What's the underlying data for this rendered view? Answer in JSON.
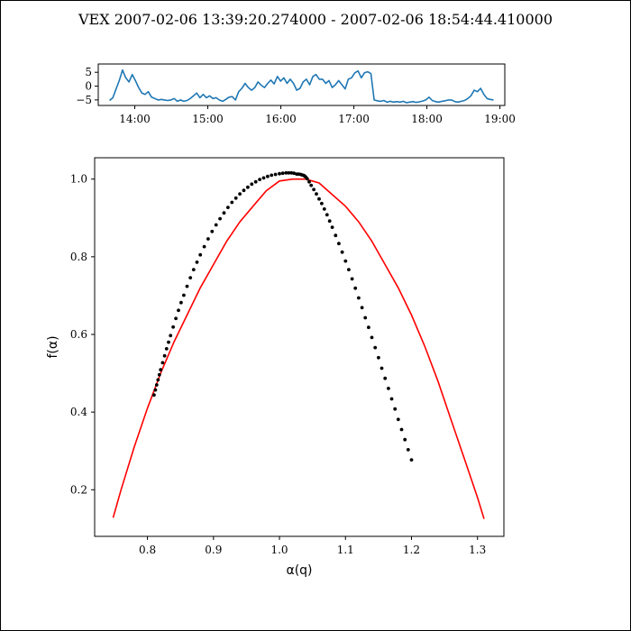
{
  "title": "VEX  2007-02-06 13:39:20.274000 - 2007-02-06 18:54:44.410000",
  "colors": {
    "timeseries": "#1f77b4",
    "fit_curve": "#ff0000",
    "spectrum_points": "#000000"
  },
  "chart_data": [
    {
      "type": "line",
      "name": "timeseries",
      "xticks": [
        "14:00",
        "15:00",
        "16:00",
        "17:00",
        "18:00",
        "19:00"
      ],
      "xlim": [
        "13:30",
        "19:04"
      ],
      "yticks": [
        5,
        0,
        -5
      ],
      "ylim": [
        -7,
        8
      ],
      "x_start": "13:39:20",
      "x_end": "18:54:44",
      "y": [
        -5.2,
        -4.2,
        -1.0,
        2.0,
        5.8,
        3.0,
        1.5,
        4.2,
        2.0,
        -0.5,
        -2.5,
        -3.0,
        -2.0,
        -4.0,
        -4.5,
        -5.0,
        -4.8,
        -5.0,
        -5.2,
        -5.0,
        -4.5,
        -5.5,
        -5.0,
        -5.5,
        -5.2,
        -4.5,
        -3.5,
        -2.5,
        -4.2,
        -3.0,
        -4.2,
        -3.5,
        -4.5,
        -4.2,
        -5.0,
        -5.5,
        -4.8,
        -4.0,
        -3.8,
        -5.0,
        -2.0,
        -0.8,
        1.0,
        -0.5,
        -1.5,
        -0.5,
        1.5,
        0.3,
        -0.5,
        1.0,
        2.2,
        0.8,
        3.5,
        1.8,
        3.0,
        1.0,
        2.5,
        1.0,
        -1.5,
        -0.8,
        1.5,
        2.5,
        0.5,
        3.5,
        4.2,
        2.5,
        2.5,
        1.0,
        2.0,
        -0.5,
        0.5,
        2.0,
        0.5,
        -1.0,
        2.5,
        3.0,
        4.8,
        5.5,
        3.0,
        4.8,
        5.2,
        4.5,
        -5.0,
        -5.3,
        -5.5,
        -5.2,
        -5.8,
        -5.5,
        -5.8,
        -5.6,
        -5.8,
        -5.5,
        -6.0,
        -5.8,
        -5.6,
        -5.9,
        -5.7,
        -5.4,
        -5.0,
        -4.0,
        -5.2,
        -5.6,
        -5.8,
        -5.5,
        -5.3,
        -5.0,
        -5.0,
        -5.6,
        -5.8,
        -5.5,
        -5.2,
        -4.5,
        -3.5,
        -1.5,
        -2.0,
        -0.8,
        -3.0,
        -4.5,
        -4.8,
        -5.0
      ]
    },
    {
      "type": "scatter",
      "name": "spectrum",
      "xlabel": "α(q)",
      "ylabel": "f(α)",
      "xticks": [
        "0.8",
        "0.9",
        "1.0",
        "1.1",
        "1.2",
        "1.3"
      ],
      "yticks": [
        "0.2",
        "0.4",
        "0.6",
        "0.8",
        "1.0"
      ],
      "xlim": [
        0.72,
        1.34
      ],
      "ylim": [
        0.08,
        1.055
      ],
      "points": {
        "x": [
          0.81,
          0.812,
          0.814,
          0.816,
          0.818,
          0.82,
          0.823,
          0.826,
          0.829,
          0.832,
          0.835,
          0.839,
          0.843,
          0.847,
          0.851,
          0.855,
          0.86,
          0.865,
          0.87,
          0.875,
          0.88,
          0.886,
          0.892,
          0.898,
          0.904,
          0.91,
          0.916,
          0.922,
          0.928,
          0.934,
          0.94,
          0.946,
          0.952,
          0.958,
          0.964,
          0.97,
          0.976,
          0.982,
          0.988,
          0.994,
          1.0,
          1.005,
          1.01,
          1.014,
          1.018,
          1.022,
          1.026,
          1.029,
          1.032,
          1.034,
          1.036,
          1.038,
          1.04,
          1.042,
          1.045,
          1.048,
          1.052,
          1.056,
          1.06,
          1.064,
          1.068,
          1.072,
          1.076,
          1.08,
          1.085,
          1.09,
          1.095,
          1.1,
          1.105,
          1.11,
          1.115,
          1.12,
          1.125,
          1.13,
          1.135,
          1.14,
          1.145,
          1.15,
          1.155,
          1.16,
          1.165,
          1.17,
          1.175,
          1.18,
          1.185,
          1.19,
          1.195,
          1.2
        ],
        "y": [
          0.444,
          0.457,
          0.47,
          0.483,
          0.496,
          0.509,
          0.527,
          0.545,
          0.563,
          0.58,
          0.597,
          0.619,
          0.641,
          0.662,
          0.682,
          0.701,
          0.724,
          0.746,
          0.767,
          0.786,
          0.805,
          0.826,
          0.846,
          0.865,
          0.882,
          0.898,
          0.913,
          0.927,
          0.94,
          0.951,
          0.962,
          0.971,
          0.979,
          0.987,
          0.993,
          0.999,
          1.003,
          1.007,
          1.01,
          1.012,
          1.014,
          1.015,
          1.016,
          1.016,
          1.016,
          1.015,
          1.013,
          1.013,
          1.012,
          1.011,
          1.01,
          1.008,
          1.005,
          1.001,
          0.993,
          0.984,
          0.973,
          0.962,
          0.949,
          0.937,
          0.923,
          0.908,
          0.892,
          0.876,
          0.855,
          0.834,
          0.812,
          0.789,
          0.767,
          0.743,
          0.719,
          0.694,
          0.669,
          0.643,
          0.618,
          0.592,
          0.566,
          0.54,
          0.513,
          0.487,
          0.461,
          0.434,
          0.408,
          0.381,
          0.355,
          0.329,
          0.303,
          0.277
        ]
      },
      "fit_curve": {
        "x": [
          0.748,
          0.76,
          0.78,
          0.8,
          0.82,
          0.84,
          0.86,
          0.88,
          0.9,
          0.92,
          0.94,
          0.96,
          0.98,
          1.0,
          1.02,
          1.03,
          1.04,
          1.06,
          1.08,
          1.1,
          1.12,
          1.14,
          1.16,
          1.18,
          1.2,
          1.22,
          1.24,
          1.26,
          1.28,
          1.3,
          1.31
        ],
        "y": [
          0.128,
          0.2,
          0.31,
          0.41,
          0.5,
          0.58,
          0.65,
          0.72,
          0.78,
          0.84,
          0.89,
          0.93,
          0.97,
          0.995,
          1.0,
          1.0,
          1.0,
          0.99,
          0.96,
          0.93,
          0.89,
          0.84,
          0.78,
          0.72,
          0.65,
          0.57,
          0.48,
          0.38,
          0.28,
          0.18,
          0.125
        ]
      }
    }
  ]
}
